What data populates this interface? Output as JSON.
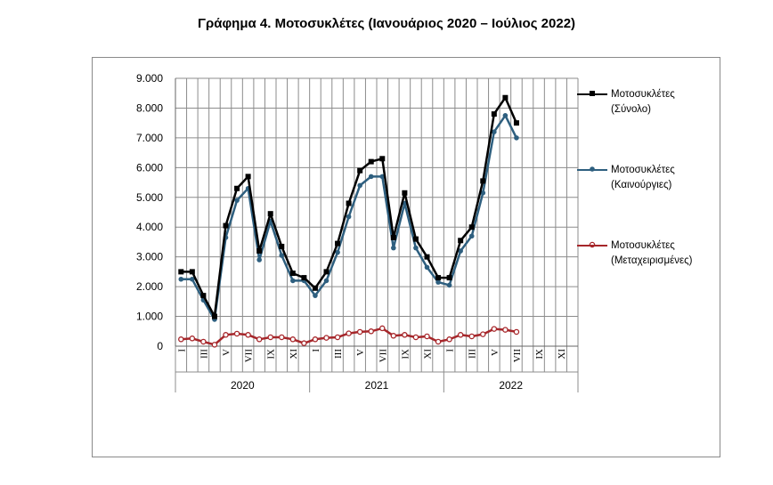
{
  "title": "Γράφημα 4. Μοτοσυκλέτες (Ιανουάριος 2020 – Ιούλιος 2022)",
  "chart_data": {
    "type": "line",
    "title": "Γράφημα 4. Μοτοσυκλέτες (Ιανουάριος 2020 – Ιούλιος 2022)",
    "ylim": [
      0,
      9000
    ],
    "yticks": [
      "0",
      "1.000",
      "2.000",
      "3.000",
      "4.000",
      "5.000",
      "6.000",
      "7.000",
      "8.000",
      "9.000"
    ],
    "month_labels": [
      "I",
      "",
      "III",
      "",
      "V",
      "",
      "VII",
      "",
      "IX",
      "",
      "XI",
      ""
    ],
    "years": [
      "2020",
      "2021",
      "2022"
    ],
    "grid": true,
    "legend_position": "right",
    "series": [
      {
        "name_line1": "Μοτοσυκλέτες",
        "name_line2": "(Σύνολο)",
        "color": "#000000",
        "marker": "square",
        "values": [
          2500,
          2500,
          1700,
          1000,
          4050,
          5300,
          5700,
          3200,
          4450,
          3350,
          2450,
          2300,
          1950,
          2500,
          3450,
          4800,
          5900,
          6200,
          6300,
          3650,
          5150,
          3600,
          3000,
          2300,
          2300,
          3550,
          4000,
          5550,
          7800,
          8350,
          7500
        ]
      },
      {
        "name_line1": "Μοτοσυκλέτες",
        "name_line2": "(Καινούργιες)",
        "color": "#2e5f7f",
        "marker": "circle",
        "values": [
          2250,
          2250,
          1550,
          900,
          3650,
          4900,
          5300,
          2900,
          4200,
          3050,
          2200,
          2200,
          1700,
          2200,
          3150,
          4350,
          5400,
          5700,
          5700,
          3300,
          4800,
          3300,
          2650,
          2150,
          2050,
          3200,
          3700,
          5150,
          7200,
          7750,
          7000
        ]
      },
      {
        "name_line1": "Μοτοσυκλέτες",
        "name_line2": "(Μεταχειρισμένες)",
        "color": "#a6262a",
        "marker": "circle-open",
        "values": [
          230,
          260,
          150,
          50,
          380,
          420,
          380,
          230,
          300,
          300,
          230,
          100,
          230,
          280,
          300,
          430,
          480,
          500,
          600,
          350,
          380,
          300,
          330,
          150,
          230,
          380,
          330,
          400,
          580,
          550,
          480
        ]
      }
    ]
  }
}
